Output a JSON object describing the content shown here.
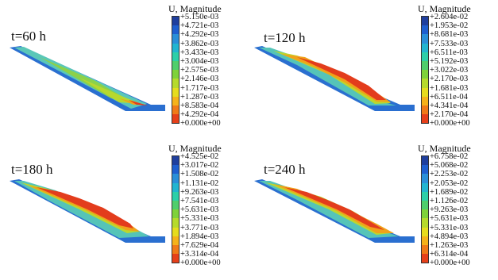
{
  "panels": [
    {
      "time": "t=60 h",
      "legend_title": "U, Magnitude",
      "values": [
        "+5.150e-03",
        "+4.721e-03",
        "+4.292e-03",
        "+3.862e-03",
        "+3.433e-03",
        "+3.004e-03",
        "+2.575e-03",
        "+2.146e-03",
        "+1.717e-03",
        "+1.287e-03",
        "+8.583e-04",
        "+4.292e-04",
        "+0.000e+00"
      ]
    },
    {
      "time": "t=120 h",
      "legend_title": "U, Magnitude",
      "values": [
        "+2.604e-02",
        "+1.953e-02",
        "+8.681e-03",
        "+7.533e-03",
        "+6.511e-03",
        "+5.192e-03",
        "+3.022e-03",
        "+2.170e-03",
        "+1.681e-03",
        "+6.511e-04",
        "+4.341e-04",
        "+2.170e-04",
        "+0.000e+00"
      ]
    },
    {
      "time": "t=180 h",
      "legend_title": "U, Magnitude",
      "values": [
        "+4.525e-02",
        "+3.017e-02",
        "+1.508e-02",
        "+1.131e-02",
        "+9.263e-03",
        "+7.541e-03",
        "+5.631e-03",
        "+5.331e-03",
        "+3.771e-03",
        "+1.894e-03",
        "+7.629e-04",
        "+3.314e-04",
        "+0.000e+00"
      ]
    },
    {
      "time": "t=240 h",
      "legend_title": "U, Magnitude",
      "values": [
        "+6.758e-02",
        "+5.068e-02",
        "+2.253e-02",
        "+2.053e-02",
        "+1.689e-02",
        "+1.126e-02",
        "+9.263e-03",
        "+5.631e-03",
        "+5.331e-03",
        "+4.894e-03",
        "+1.263e-03",
        "+6.314e-04",
        "+0.000e+00"
      ]
    }
  ],
  "colors": {
    "scale": [
      "#1f3f9e",
      "#1f5fcf",
      "#2a8fd8",
      "#22b5d0",
      "#2ccfa8",
      "#4fce6c",
      "#7fd23a",
      "#b6da2c",
      "#e6dc1e",
      "#f5b21a",
      "#f07a18",
      "#e6401a",
      "#d81e1e"
    ]
  }
}
